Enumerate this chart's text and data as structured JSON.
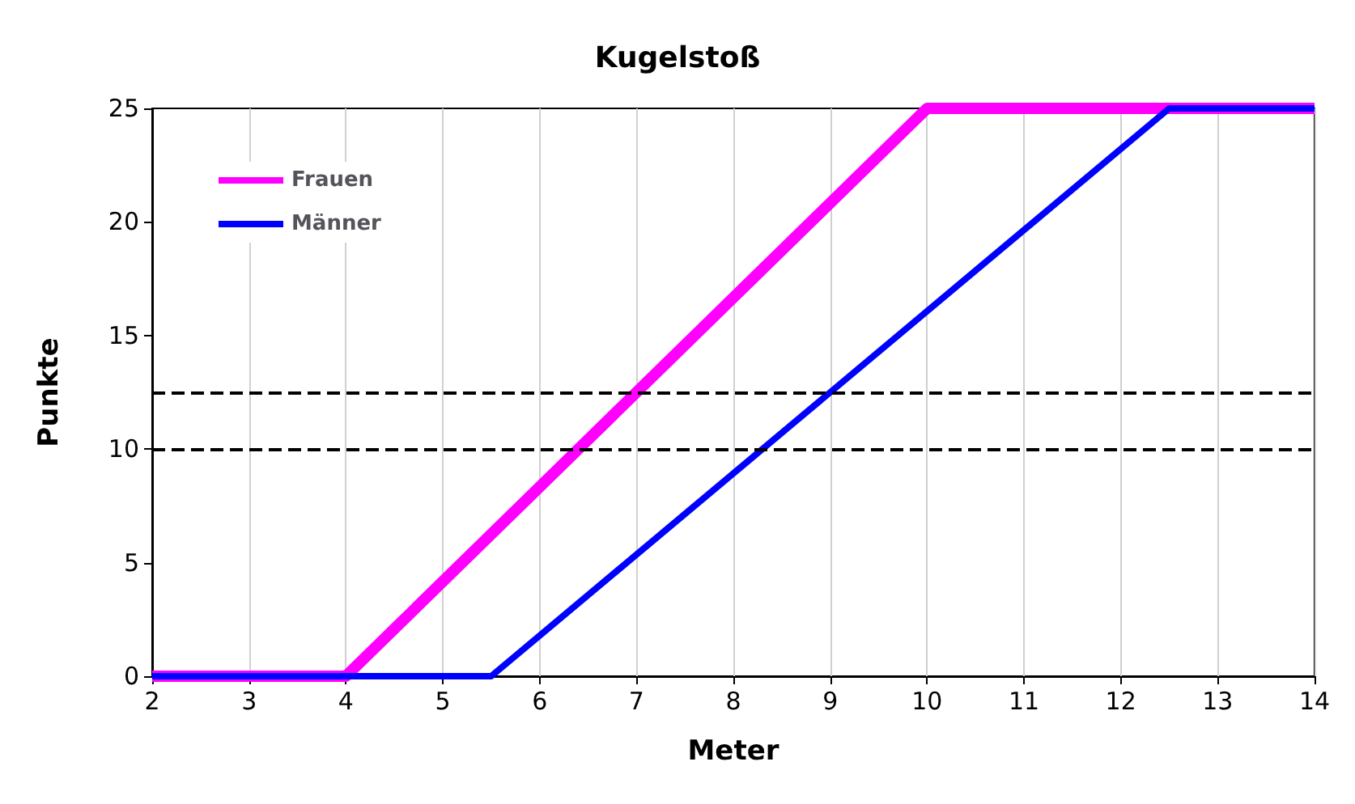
{
  "chart_data": {
    "type": "line",
    "title": "Kugelstoß",
    "xlabel": "Meter",
    "ylabel": "Punkte",
    "series": [
      {
        "name": "Frauen",
        "color": "#ff00ff",
        "x": [
          2,
          4,
          10,
          14
        ],
        "values": [
          0,
          0,
          25,
          25
        ]
      },
      {
        "name": "Männer",
        "color": "#0000ff",
        "x": [
          2,
          5.5,
          12.5,
          14
        ],
        "values": [
          0,
          0,
          25,
          25
        ]
      }
    ],
    "xlim": [
      2,
      14
    ],
    "xticks": [
      2,
      3,
      4,
      5,
      6,
      7,
      8,
      9,
      10,
      11,
      12,
      13,
      14
    ],
    "ylim": [
      0,
      25
    ],
    "yticks": [
      0,
      5,
      10,
      15,
      20,
      25
    ],
    "ref_lines": [
      {
        "axis": "y",
        "value": 12.5,
        "color": "#000000",
        "line_style": "dashed"
      },
      {
        "axis": "y",
        "value": 10,
        "color": "#000000",
        "line_style": "dashed"
      }
    ],
    "grid": "x",
    "legend": "top left",
    "marker": "none",
    "line_style": "solid"
  }
}
